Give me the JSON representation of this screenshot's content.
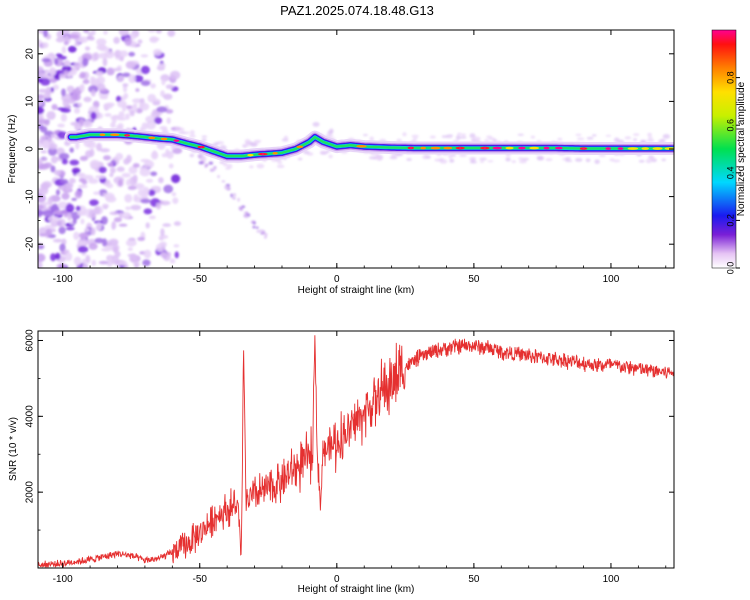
{
  "figure_title": "PAZ1.2025.074.18.48.G13",
  "chart_data": [
    {
      "type": "heatmap",
      "title": "",
      "xlabel": "Height of straight line (km)",
      "ylabel": "Frequency (Hz)",
      "xlim": [
        -109,
        123
      ],
      "ylim": [
        -25,
        25
      ],
      "xticks": [
        -100,
        -50,
        0,
        50,
        100
      ],
      "xtick_labels": [
        "-100",
        "-50",
        "0",
        "50",
        "100"
      ],
      "yticks": [
        -20,
        -10,
        0,
        10,
        20
      ],
      "ytick_labels": [
        "-20",
        "-10",
        "0",
        "10",
        "20"
      ],
      "colorbar": {
        "label": "Normalized spectral amplitude",
        "range": [
          0,
          1
        ],
        "ticks": [
          0,
          0.2,
          0.4,
          0.6,
          0.8
        ],
        "tick_labels": [
          "0.0",
          "0.2",
          "0.4",
          "0.6",
          "0.8"
        ]
      },
      "ridge": {
        "x": [
          -95,
          -90,
          -85,
          -80,
          -75,
          -70,
          -65,
          -60,
          -55,
          -50,
          -45,
          -40,
          -35,
          -30,
          -25,
          -20,
          -15,
          -10,
          -8,
          -5,
          0,
          5,
          10,
          20,
          30,
          40,
          50,
          60,
          70,
          80,
          90,
          100,
          110,
          123
        ],
        "y": [
          2.5,
          3,
          3,
          3,
          2.8,
          2.5,
          2.2,
          2,
          1.2,
          0.5,
          -0.5,
          -1.5,
          -1.5,
          -1.2,
          -1,
          -0.8,
          0,
          1.5,
          2.5,
          1.5,
          0.5,
          0.8,
          0.5,
          0.3,
          0.2,
          0.2,
          0.2,
          0.2,
          0.2,
          0.2,
          0.1,
          0.1,
          0.1,
          0.1
        ]
      },
      "faint_branch": {
        "x": [
          -50,
          -45,
          -40,
          -35,
          -30,
          -25
        ],
        "y": [
          -2,
          -4,
          -8,
          -12,
          -16,
          -19
        ]
      },
      "noise_region_x": [
        -109,
        -58
      ]
    },
    {
      "type": "line",
      "title": "",
      "xlabel": "Height of straight line (km)",
      "ylabel": "SNR (10 * v/v)",
      "xlim": [
        -109,
        123
      ],
      "ylim": [
        0,
        6250
      ],
      "xticks": [
        -100,
        -50,
        0,
        50,
        100
      ],
      "xtick_labels": [
        "-100",
        "-50",
        "0",
        "50",
        "100"
      ],
      "yticks": [
        2000,
        4000,
        6000
      ],
      "ytick_labels": [
        "2000",
        "4000",
        "6000"
      ],
      "line_color": "#e53030",
      "envelope": {
        "x": [
          -109,
          -100,
          -90,
          -85,
          -80,
          -75,
          -70,
          -65,
          -60,
          -55,
          -50,
          -45,
          -40,
          -35,
          -30,
          -25,
          -20,
          -15,
          -10,
          -5,
          0,
          5,
          10,
          15,
          20,
          25,
          30,
          35,
          40,
          45,
          50,
          55,
          60,
          65,
          70,
          75,
          80,
          85,
          90,
          95,
          100,
          105,
          110,
          115,
          123
        ],
        "y": [
          80,
          120,
          220,
          300,
          380,
          330,
          200,
          250,
          400,
          600,
          900,
          1300,
          1550,
          1650,
          1900,
          2100,
          2300,
          2600,
          2900,
          3100,
          3300,
          3700,
          4100,
          4500,
          4900,
          5300,
          5550,
          5700,
          5800,
          5850,
          5850,
          5800,
          5700,
          5650,
          5600,
          5550,
          5500,
          5450,
          5400,
          5350,
          5350,
          5300,
          5250,
          5200,
          5150
        ]
      },
      "spikes": [
        {
          "x": -34,
          "y": 5800
        },
        {
          "x": -8,
          "y": 6150
        }
      ],
      "dips": [
        {
          "x": -35,
          "y": 200
        },
        {
          "x": -6,
          "y": 1500
        }
      ]
    }
  ]
}
